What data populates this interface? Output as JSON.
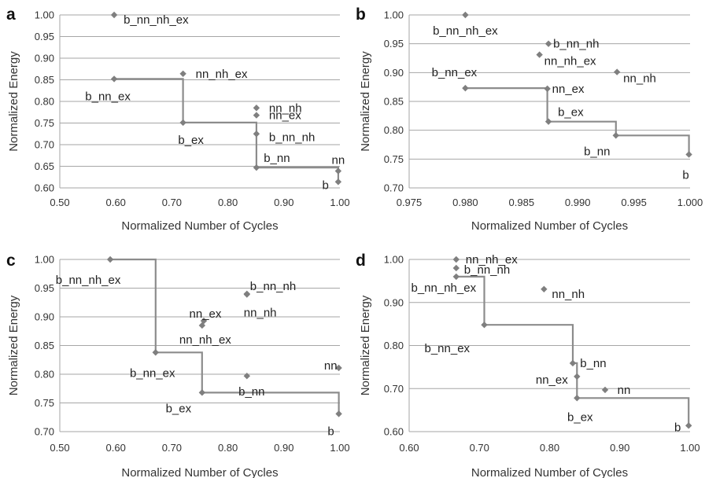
{
  "colors": {
    "marker": "#7f7f7f",
    "frontier": "#8c8c8c",
    "grid": "#a6a6a6"
  },
  "chart_data": [
    {
      "type": "scatter",
      "panel": "a",
      "xlabel": "Normalized Number of Cycles",
      "ylabel": "Normalized Energy",
      "xlim": [
        0.5,
        1.0
      ],
      "ylim": [
        0.6,
        1.0
      ],
      "xticks": [
        "0.50",
        "0.60",
        "0.70",
        "0.80",
        "0.90",
        "1.00"
      ],
      "yticks": [
        "0.60",
        "0.65",
        "0.70",
        "0.75",
        "0.80",
        "0.85",
        "0.90",
        "0.95",
        "1.00"
      ],
      "grid": "horizontal",
      "points": [
        {
          "label": "b_nn_nh_ex",
          "x": 0.597,
          "y": 1.0
        },
        {
          "label": "b_nn_ex",
          "x": 0.597,
          "y": 0.852
        },
        {
          "label": "nn_nh_ex",
          "x": 0.72,
          "y": 0.864
        },
        {
          "label": "b_ex",
          "x": 0.72,
          "y": 0.751
        },
        {
          "label": "nn_nh",
          "x": 0.851,
          "y": 0.785
        },
        {
          "label": "nn_ex",
          "x": 0.851,
          "y": 0.768
        },
        {
          "label": "b_nn_nh",
          "x": 0.851,
          "y": 0.725
        },
        {
          "label": "b_nn",
          "x": 0.851,
          "y": 0.647
        },
        {
          "label": "nn",
          "x": 0.997,
          "y": 0.639
        },
        {
          "label": "b",
          "x": 0.997,
          "y": 0.614
        }
      ],
      "frontier": [
        [
          0.597,
          0.852
        ],
        [
          0.72,
          0.852
        ],
        [
          0.72,
          0.751
        ],
        [
          0.851,
          0.751
        ],
        [
          0.851,
          0.647
        ],
        [
          0.997,
          0.647
        ],
        [
          0.997,
          0.614
        ]
      ]
    },
    {
      "type": "scatter",
      "panel": "b",
      "xlabel": "Normalized Number of Cycles",
      "ylabel": "Normalized Energy",
      "xlim": [
        0.975,
        1.0
      ],
      "ylim": [
        0.7,
        1.0
      ],
      "xticks": [
        "0.975",
        "0.980",
        "0.985",
        "0.990",
        "0.995",
        "1.000"
      ],
      "yticks": [
        "0.70",
        "0.75",
        "0.80",
        "0.85",
        "0.90",
        "0.95",
        "1.00"
      ],
      "grid": "horizontal",
      "points": [
        {
          "label": "b_nn_nh_ex",
          "x": 0.98,
          "y": 1.0
        },
        {
          "label": "b_nn_nh",
          "x": 0.9874,
          "y": 0.95
        },
        {
          "label": "nn_nh_ex",
          "x": 0.9866,
          "y": 0.931
        },
        {
          "label": "nn_nh",
          "x": 0.9935,
          "y": 0.901
        },
        {
          "label": "b_nn_ex",
          "x": 0.98,
          "y": 0.873
        },
        {
          "label": "nn_ex",
          "x": 0.9873,
          "y": 0.872
        },
        {
          "label": "b_ex",
          "x": 0.9874,
          "y": 0.815
        },
        {
          "label": "b_nn",
          "x": 0.9934,
          "y": 0.791
        },
        {
          "label": "b",
          "x": 0.9999,
          "y": 0.758
        }
      ],
      "frontier": [
        [
          0.98,
          0.873
        ],
        [
          0.9873,
          0.873
        ],
        [
          0.9873,
          0.815
        ],
        [
          0.9934,
          0.815
        ],
        [
          0.9934,
          0.791
        ],
        [
          0.9999,
          0.791
        ],
        [
          0.9999,
          0.758
        ]
      ]
    },
    {
      "type": "scatter",
      "panel": "c",
      "xlabel": "Normalized Number of Cycles",
      "ylabel": "Normalized Energy",
      "xlim": [
        0.5,
        1.0
      ],
      "ylim": [
        0.7,
        1.0
      ],
      "xticks": [
        "0.50",
        "0.60",
        "0.70",
        "0.80",
        "0.90",
        "1.00"
      ],
      "yticks": [
        "0.70",
        "0.75",
        "0.80",
        "0.85",
        "0.90",
        "0.95",
        "1.00"
      ],
      "grid": "horizontal",
      "points": [
        {
          "label": "b_nn_nh_ex",
          "x": 0.59,
          "y": 1.0
        },
        {
          "label": "b_nn_nh",
          "x": 0.834,
          "y": 0.94
        },
        {
          "label": "nn_nh",
          "x": 0.834,
          "y": 0.939
        },
        {
          "label": "nn_ex",
          "x": 0.757,
          "y": 0.893
        },
        {
          "label": "nn_nh_ex",
          "x": 0.754,
          "y": 0.885
        },
        {
          "label": "b_nn_ex",
          "x": 0.671,
          "y": 0.838
        },
        {
          "label": "nn",
          "x": 0.998,
          "y": 0.811
        },
        {
          "label": "b_nn",
          "x": 0.834,
          "y": 0.797
        },
        {
          "label": "b_ex",
          "x": 0.754,
          "y": 0.768
        },
        {
          "label": "b",
          "x": 0.998,
          "y": 0.731
        }
      ],
      "frontier": [
        [
          0.59,
          1.0
        ],
        [
          0.671,
          1.0
        ],
        [
          0.671,
          0.838
        ],
        [
          0.754,
          0.838
        ],
        [
          0.754,
          0.768
        ],
        [
          0.998,
          0.768
        ],
        [
          0.998,
          0.731
        ]
      ]
    },
    {
      "type": "scatter",
      "panel": "d",
      "xlabel": "Normalized Number of Cycles",
      "ylabel": "Normalized Energy",
      "xlim": [
        0.6,
        1.0
      ],
      "ylim": [
        0.6,
        1.0
      ],
      "xticks": [
        "0.60",
        "0.70",
        "0.80",
        "0.90",
        "1.00"
      ],
      "yticks": [
        "0.60",
        "0.70",
        "0.80",
        "0.90",
        "1.00"
      ],
      "grid": "horizontal",
      "points": [
        {
          "label": "nn_nh_ex",
          "x": 0.667,
          "y": 1.0
        },
        {
          "label": "b_nn_nh",
          "x": 0.667,
          "y": 0.98
        },
        {
          "label": "b_nn_nh_ex",
          "x": 0.667,
          "y": 0.96
        },
        {
          "label": "nn_nh",
          "x": 0.792,
          "y": 0.931
        },
        {
          "label": "b_nn_ex",
          "x": 0.707,
          "y": 0.848
        },
        {
          "label": "b_nn",
          "x": 0.833,
          "y": 0.759
        },
        {
          "label": "nn_ex",
          "x": 0.839,
          "y": 0.728
        },
        {
          "label": "nn",
          "x": 0.879,
          "y": 0.697
        },
        {
          "label": "b_ex",
          "x": 0.839,
          "y": 0.678
        },
        {
          "label": "b",
          "x": 0.998,
          "y": 0.614
        }
      ],
      "frontier": [
        [
          0.667,
          0.96
        ],
        [
          0.707,
          0.96
        ],
        [
          0.707,
          0.848
        ],
        [
          0.833,
          0.848
        ],
        [
          0.833,
          0.759
        ],
        [
          0.839,
          0.759
        ],
        [
          0.839,
          0.678
        ],
        [
          0.998,
          0.678
        ],
        [
          0.998,
          0.614
        ]
      ]
    }
  ]
}
